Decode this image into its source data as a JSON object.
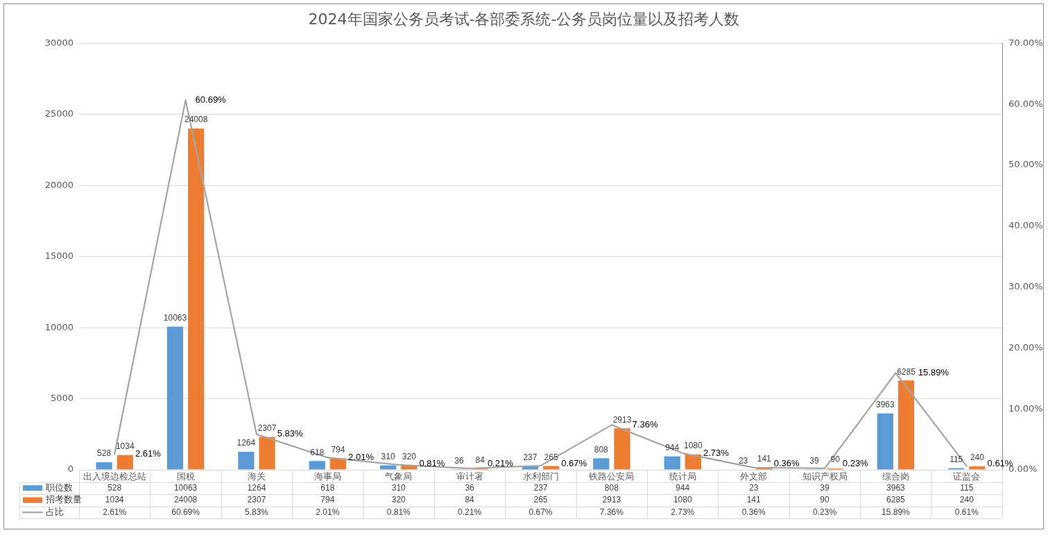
{
  "chart_data": {
    "type": "bar",
    "title": "2024年国家公务员考试-各部委系统-公务员岗位量以及招考人数",
    "categories": [
      "出入境边检总站",
      "国税",
      "海关",
      "海事局",
      "气象局",
      "审计署",
      "水利部门",
      "铁路公安局",
      "统计局",
      "外文部",
      "知识产权局",
      "综合岗",
      "证监会"
    ],
    "series": [
      {
        "name": "职位数",
        "color": "#5b9bd5",
        "values": [
          528,
          10063,
          1264,
          618,
          310,
          36,
          237,
          808,
          944,
          23,
          39,
          3963,
          115
        ],
        "value_labels": [
          "528",
          "10063",
          "1264",
          "618",
          "310",
          "36",
          "237",
          "808",
          "944",
          "23",
          "39",
          "3963",
          "115"
        ]
      },
      {
        "name": "招考数量",
        "color": "#ed7d31",
        "values": [
          1034,
          24008,
          2307,
          794,
          320,
          84,
          265,
          2913,
          1080,
          141,
          90,
          6285,
          240
        ],
        "value_labels": [
          "1034",
          "24008",
          "2307",
          "794",
          "320",
          "84",
          "265",
          "2913",
          "1080",
          "141",
          "90",
          "6285",
          "240"
        ]
      },
      {
        "name": "占比",
        "type": "line",
        "axis": "y2",
        "color": "#a5a5a5",
        "values": [
          2.61,
          60.69,
          5.83,
          2.01,
          0.81,
          0.21,
          0.67,
          7.36,
          2.73,
          0.36,
          0.23,
          15.89,
          0.61
        ],
        "value_labels": [
          "2.61%",
          "60.69%",
          "5.83%",
          "2.01%",
          "0.81%",
          "0.21%",
          "0.67%",
          "7.36%",
          "2.73%",
          "0.36%",
          "0.23%",
          "15.89%",
          "0.61%"
        ]
      }
    ],
    "ylim": [
      0,
      30000
    ],
    "yticks": [
      0,
      5000,
      10000,
      15000,
      20000,
      25000,
      30000
    ],
    "y2lim": [
      0,
      70
    ],
    "y2ticks": [
      {
        "value": 0,
        "label": "0.00%"
      },
      {
        "value": 10,
        "label": "10.00%"
      },
      {
        "value": 20,
        "label": "20.00%"
      },
      {
        "value": 30,
        "label": "30.00%"
      },
      {
        "value": 40,
        "label": "40.00%"
      },
      {
        "value": 50,
        "label": "50.00%"
      },
      {
        "value": 60,
        "label": "60.00%"
      },
      {
        "value": 70,
        "label": "70.00%"
      }
    ],
    "grid": "y",
    "legend": "bottom",
    "marker": "none"
  }
}
